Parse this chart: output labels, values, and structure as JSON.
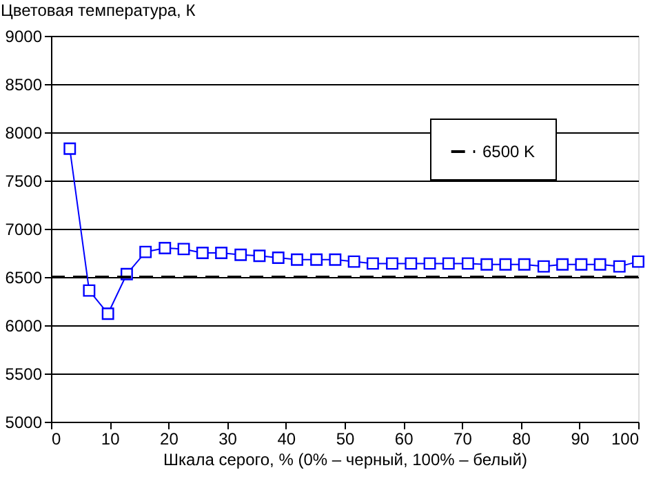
{
  "chart_data": {
    "type": "line",
    "xlabel": "Шкала серого, % (0% – черный, 100% – белый)",
    "ylabel": "Цветовая температура, К",
    "x": [
      3.2,
      6.5,
      9.7,
      12.9,
      16.1,
      19.4,
      22.6,
      25.8,
      29.0,
      32.3,
      35.5,
      38.7,
      41.9,
      45.2,
      48.4,
      51.6,
      54.8,
      58.1,
      61.3,
      64.5,
      67.7,
      71.0,
      74.2,
      77.4,
      80.6,
      83.9,
      87.1,
      90.3,
      93.5,
      96.8,
      100
    ],
    "series": [
      {
        "color": "#0000ff",
        "values": [
          7830,
          6360,
          6120,
          6530,
          6760,
          6800,
          6790,
          6750,
          6750,
          6730,
          6720,
          6700,
          6680,
          6680,
          6680,
          6660,
          6640,
          6640,
          6640,
          6640,
          6640,
          6640,
          6630,
          6630,
          6630,
          6610,
          6630,
          6630,
          6630,
          6610,
          6660
        ]
      }
    ],
    "xlim": [
      0,
      100
    ],
    "xticks": [
      0,
      10,
      20,
      30,
      40,
      50,
      60,
      70,
      80,
      90,
      100
    ],
    "ylim": [
      5000,
      9000
    ],
    "yticks": [
      5000,
      5500,
      6000,
      6500,
      7000,
      7500,
      8000,
      8500,
      9000
    ],
    "ref_lines": [
      {
        "axis": "y",
        "value": 6500,
        "label": "6500 K",
        "color": "#000000",
        "line_style": "dashed"
      }
    ],
    "grid": "y",
    "legend": "top right",
    "marker": "square",
    "line_style": "solid"
  }
}
